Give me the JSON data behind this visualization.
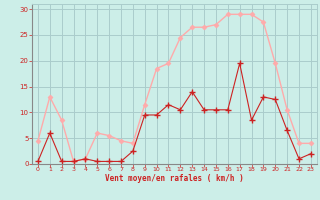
{
  "x": [
    0,
    1,
    2,
    3,
    4,
    5,
    6,
    7,
    8,
    9,
    10,
    11,
    12,
    13,
    14,
    15,
    16,
    17,
    18,
    19,
    20,
    21,
    22,
    23
  ],
  "y_rafales": [
    4.5,
    13.0,
    8.5,
    0.5,
    1.0,
    6.0,
    5.5,
    4.5,
    4.0,
    11.5,
    18.5,
    19.5,
    24.5,
    26.5,
    26.5,
    27.0,
    29.0,
    29.0,
    29.0,
    27.5,
    19.5,
    10.5,
    4.0,
    4.0
  ],
  "y_moyen": [
    0.5,
    6.0,
    0.5,
    0.5,
    1.0,
    0.5,
    0.5,
    0.5,
    2.5,
    9.5,
    9.5,
    11.5,
    10.5,
    14.0,
    10.5,
    10.5,
    10.5,
    19.5,
    8.5,
    13.0,
    12.5,
    6.5,
    1.0,
    2.0
  ],
  "color_rafales": "#ffaaaa",
  "color_moyen": "#cc2222",
  "bg_color": "#cceee8",
  "grid_color": "#aacccc",
  "axis_color": "#cc2222",
  "xlabel": "Vent moyen/en rafales ( km/h )",
  "ylim": [
    0,
    31
  ],
  "xlim": [
    -0.5,
    23.5
  ],
  "yticks": [
    0,
    5,
    10,
    15,
    20,
    25,
    30
  ],
  "xticks": [
    0,
    1,
    2,
    3,
    4,
    5,
    6,
    7,
    8,
    9,
    10,
    11,
    12,
    13,
    14,
    15,
    16,
    17,
    18,
    19,
    20,
    21,
    22,
    23
  ]
}
